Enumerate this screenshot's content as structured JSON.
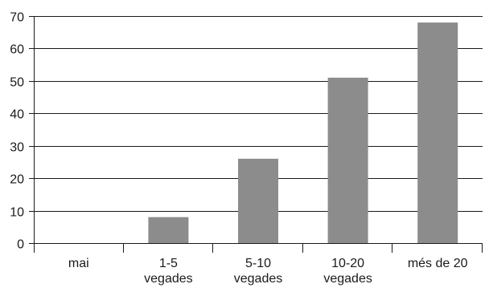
{
  "chart_data": {
    "type": "bar",
    "categories": [
      [
        "mai"
      ],
      [
        "1-5",
        "vegades"
      ],
      [
        "5-10",
        "vegades"
      ],
      [
        "10-20",
        "vegades"
      ],
      [
        "més de 20"
      ]
    ],
    "values": [
      0,
      8,
      26,
      51,
      68
    ],
    "ylim": [
      0,
      70
    ],
    "yticks": [
      0,
      10,
      20,
      30,
      40,
      50,
      60,
      70
    ],
    "grid": true,
    "legend": "none",
    "bar_color": "#8c8c8c",
    "axis_color": "#1a1a1a"
  }
}
